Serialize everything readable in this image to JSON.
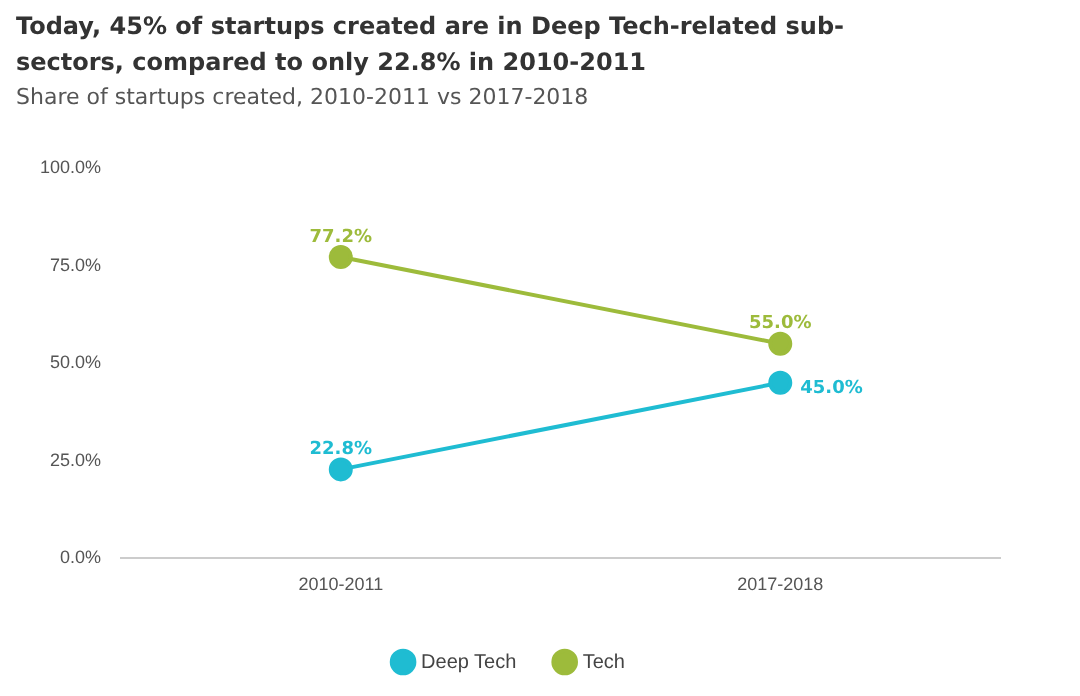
{
  "chart_data": {
    "type": "line",
    "title": "Today, 45% of startups created are in Deep Tech-related sub-sectors, compared to only 22.8% in 2010-2011",
    "subtitle": "Share of startups created, 2010-2011 vs 2017-2018",
    "categories": [
      "2010-2011",
      "2017-2018"
    ],
    "series": [
      {
        "name": "Deep Tech",
        "color": "#1fbcd2",
        "values": [
          22.8,
          45.0
        ],
        "value_labels": [
          "22.8%",
          "45.0%"
        ]
      },
      {
        "name": "Tech",
        "color": "#9dbb3b",
        "values": [
          77.2,
          55.0
        ],
        "value_labels": [
          "77.2%",
          "55.0%"
        ]
      }
    ],
    "ylim": [
      0,
      100
    ],
    "yticks": [
      {
        "value": 0,
        "label": "0.0%"
      },
      {
        "value": 25,
        "label": "25.0%"
      },
      {
        "value": 50,
        "label": "50.0%"
      },
      {
        "value": 75,
        "label": "75.0%"
      },
      {
        "value": 100,
        "label": "100.0%"
      }
    ],
    "grid": false,
    "legend": "bottom",
    "marker": "circle",
    "line_style": "solid"
  }
}
